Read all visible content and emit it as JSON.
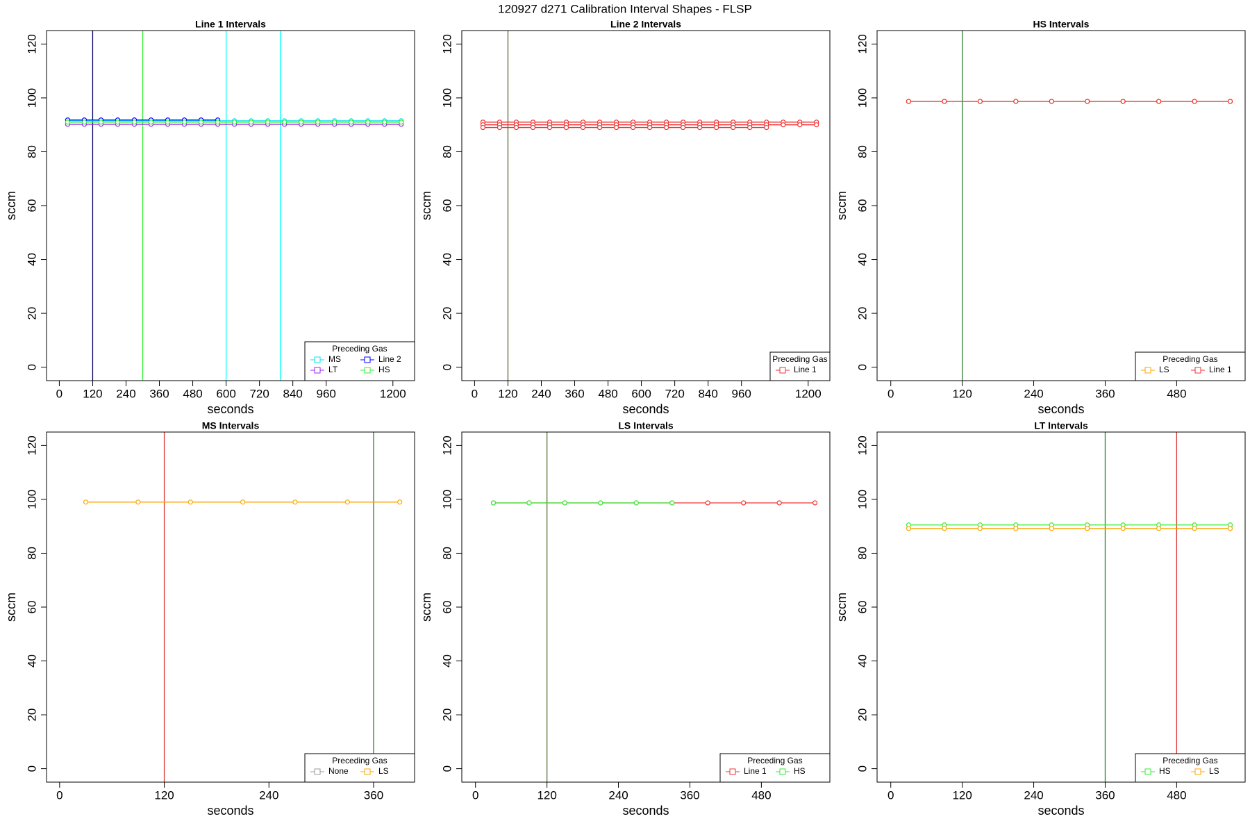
{
  "title": "120927   d271   Calibration Interval Shapes - FLSP",
  "chart_data": [
    {
      "type": "line",
      "title": "Line 1 Intervals",
      "x_label": "seconds",
      "y_label": "sccm",
      "legend_title": "Preceding Gas",
      "legend": "bottom-right",
      "xlim": [
        -46,
        1278
      ],
      "ylim": [
        -5,
        125
      ],
      "xticks": [
        0,
        120,
        240,
        360,
        480,
        600,
        720,
        840,
        960,
        1200
      ],
      "yticks": [
        0,
        20,
        40,
        60,
        80,
        100,
        120
      ],
      "vlines": [
        {
          "x": 120,
          "color": "#000066"
        },
        {
          "x": 300,
          "color": "#33ee33"
        },
        {
          "x": 600,
          "color": "#00ffff"
        },
        {
          "x": 795,
          "color": "#00ffff"
        }
      ],
      "series": [
        {
          "name": "MS",
          "color": "#00e5ee",
          "x": [
            30,
            90,
            150,
            210,
            270,
            330,
            390,
            450,
            510,
            570,
            630,
            690,
            750,
            810,
            870,
            930,
            990,
            1050,
            1110,
            1170,
            1230
          ],
          "values": [
            91.5,
            91.5,
            91.5,
            91.5,
            91.5,
            91.5,
            91.5,
            91.5,
            91.5,
            91.5,
            91.5,
            91.5,
            91.5,
            91.5,
            91.5,
            91.5,
            91.5,
            91.5,
            91.5,
            91.5,
            91.5
          ]
        },
        {
          "name": "Line 2",
          "color": "#0000ff",
          "x": [
            30,
            90,
            150,
            210,
            270,
            330,
            390,
            450,
            510,
            570
          ],
          "values": [
            91.8,
            91.8,
            91.8,
            91.8,
            91.8,
            91.8,
            91.8,
            91.8,
            91.8,
            91.8
          ]
        },
        {
          "name": "LT",
          "color": "#a020f0",
          "x": [
            30,
            90,
            150,
            210,
            270,
            330,
            390,
            450,
            510,
            570,
            630,
            690,
            750,
            810,
            870,
            930,
            990,
            1050,
            1110,
            1170,
            1230
          ],
          "values": [
            90.2,
            90.2,
            90.2,
            90.2,
            90.2,
            90.2,
            90.2,
            90.2,
            90.2,
            90.2,
            90.2,
            90.2,
            90.2,
            90.2,
            90.2,
            90.2,
            90.2,
            90.2,
            90.2,
            90.2,
            90.2
          ]
        },
        {
          "name": "HS",
          "color": "#33ee33",
          "x": [
            30,
            90,
            150,
            210,
            270,
            330,
            390,
            450,
            510,
            570,
            630,
            690,
            750,
            810,
            870,
            930,
            990,
            1050,
            1110,
            1170,
            1230
          ],
          "values": [
            91,
            91,
            91,
            91,
            91,
            91,
            91,
            91,
            91,
            91,
            91,
            91,
            91,
            91,
            91,
            91,
            91,
            91,
            91,
            91,
            91
          ]
        }
      ]
    },
    {
      "type": "line",
      "title": "Line 2 Intervals",
      "x_label": "seconds",
      "y_label": "sccm",
      "legend_title": "Preceding Gas",
      "legend": "bottom-right",
      "xlim": [
        -46,
        1278
      ],
      "ylim": [
        -5,
        125
      ],
      "xticks": [
        0,
        120,
        240,
        360,
        480,
        600,
        720,
        840,
        960,
        1200
      ],
      "yticks": [
        0,
        20,
        40,
        60,
        80,
        100,
        120
      ],
      "vlines": [
        {
          "x": 120,
          "color": "#556b2f"
        }
      ],
      "series": [
        {
          "name": "Line 1",
          "color": "#ee3333",
          "x": [
            30,
            90,
            150,
            210,
            270,
            330,
            390,
            450,
            510,
            570,
            630,
            690,
            750,
            810,
            870,
            930,
            990,
            1050,
            1110,
            1170,
            1230
          ],
          "values": [
            91,
            91,
            91,
            91,
            91,
            91,
            91,
            91,
            91,
            91,
            91,
            91,
            91,
            91,
            91,
            91,
            91,
            91,
            91,
            91,
            91
          ]
        },
        {
          "color": "#ee3333",
          "x": [
            30,
            90,
            150,
            210,
            270,
            330,
            390,
            450,
            510,
            570,
            630,
            690,
            750,
            810,
            870,
            930,
            990,
            1050,
            1110,
            1170,
            1230
          ],
          "values": [
            90,
            90,
            90,
            90,
            90,
            90,
            90,
            90,
            90,
            90,
            90,
            90,
            90,
            90,
            90,
            90,
            90,
            90,
            90,
            90,
            90
          ]
        },
        {
          "color": "#ee3333",
          "x": [
            30,
            90,
            150,
            210,
            270,
            330,
            390,
            450,
            510,
            570,
            630,
            690,
            750,
            810,
            870,
            930,
            990,
            1050
          ],
          "values": [
            89,
            89,
            89,
            89,
            89,
            89,
            89,
            89,
            89,
            89,
            89,
            89,
            89,
            89,
            89,
            89,
            89,
            89
          ]
        }
      ]
    },
    {
      "type": "line",
      "title": "HS Intervals",
      "x_label": "seconds",
      "y_label": "sccm",
      "legend_title": "Preceding Gas",
      "legend": "bottom-right",
      "xlim": [
        -23,
        595
      ],
      "ylim": [
        -5,
        125
      ],
      "xticks": [
        0,
        120,
        240,
        360,
        480
      ],
      "yticks": [
        0,
        20,
        40,
        60,
        80,
        100,
        120
      ],
      "vlines": [
        {
          "x": 120,
          "color": "#2e7d32"
        }
      ],
      "series": [
        {
          "name": "LS",
          "color": "#ffa500",
          "x": [
            30,
            90,
            150,
            210,
            270,
            330,
            390,
            450,
            510,
            570
          ],
          "values": [
            98.7,
            98.7,
            98.7,
            98.7,
            98.7,
            98.7,
            98.7,
            98.7,
            98.7,
            98.7
          ]
        },
        {
          "name": "Line 1",
          "color": "#ee3333",
          "x": [
            30,
            90,
            150,
            210,
            270,
            330,
            390,
            450,
            510,
            570
          ],
          "values": [
            98.7,
            98.7,
            98.7,
            98.7,
            98.7,
            98.7,
            98.7,
            98.7,
            98.7,
            98.7
          ]
        }
      ]
    },
    {
      "type": "line",
      "title": "MS Intervals",
      "x_label": "seconds",
      "y_label": "sccm",
      "legend_title": "Preceding Gas",
      "legend": "bottom-right",
      "xlim": [
        -15,
        407
      ],
      "ylim": [
        -5,
        125
      ],
      "xticks": [
        0,
        120,
        240,
        360
      ],
      "yticks": [
        0,
        20,
        40,
        60,
        80,
        100,
        120
      ],
      "vlines": [
        {
          "x": 120,
          "color": "#dd3333"
        },
        {
          "x": 360,
          "color": "#228b22"
        }
      ],
      "series": [
        {
          "name": "None",
          "color": "#999999",
          "x": [],
          "values": []
        },
        {
          "name": "LS",
          "color": "#ffa500",
          "x": [
            30,
            90,
            150,
            210,
            270,
            330,
            390
          ],
          "values": [
            99,
            99,
            99,
            99,
            99,
            99,
            99
          ]
        }
      ]
    },
    {
      "type": "line",
      "title": "LS Intervals",
      "x_label": "seconds",
      "y_label": "sccm",
      "legend_title": "Preceding Gas",
      "legend": "bottom-right",
      "xlim": [
        -23,
        595
      ],
      "ylim": [
        -5,
        125
      ],
      "xticks": [
        0,
        120,
        240,
        360,
        480
      ],
      "yticks": [
        0,
        20,
        40,
        60,
        80,
        100,
        120
      ],
      "vlines": [
        {
          "x": 120,
          "color": "#556b2f"
        }
      ],
      "series": [
        {
          "name": "Line 1",
          "color": "#ee3333",
          "x": [
            30,
            90,
            150,
            210,
            270,
            330,
            390,
            450,
            510,
            570
          ],
          "values": [
            98.7,
            98.7,
            98.7,
            98.7,
            98.7,
            98.7,
            98.7,
            98.7,
            98.7,
            98.7
          ]
        },
        {
          "name": "HS",
          "color": "#33ee33",
          "x": [
            30,
            90,
            150,
            210,
            270,
            330
          ],
          "values": [
            98.7,
            98.7,
            98.7,
            98.7,
            98.7,
            98.7
          ]
        }
      ]
    },
    {
      "type": "line",
      "title": "LT Intervals",
      "x_label": "seconds",
      "y_label": "sccm",
      "legend_title": "Preceding Gas",
      "legend": "bottom-right",
      "xlim": [
        -23,
        595
      ],
      "ylim": [
        -5,
        125
      ],
      "xticks": [
        0,
        120,
        240,
        360,
        480
      ],
      "yticks": [
        0,
        20,
        40,
        60,
        80,
        100,
        120
      ],
      "vlines": [
        {
          "x": 360,
          "color": "#228b22"
        },
        {
          "x": 480,
          "color": "#dd3333"
        }
      ],
      "series": [
        {
          "name": "HS",
          "color": "#33ee33",
          "x": [
            30,
            90,
            150,
            210,
            270,
            330,
            390,
            450,
            510,
            570
          ],
          "values": [
            90.5,
            90.5,
            90.5,
            90.5,
            90.5,
            90.5,
            90.5,
            90.5,
            90.5,
            90.5
          ]
        },
        {
          "name": "LS",
          "color": "#ffa500",
          "x": [
            30,
            90,
            150,
            210,
            270,
            330,
            390,
            450,
            510,
            570
          ],
          "values": [
            89.2,
            89.2,
            89.2,
            89.2,
            89.2,
            89.2,
            89.2,
            89.2,
            89.2,
            89.2
          ]
        }
      ]
    }
  ]
}
